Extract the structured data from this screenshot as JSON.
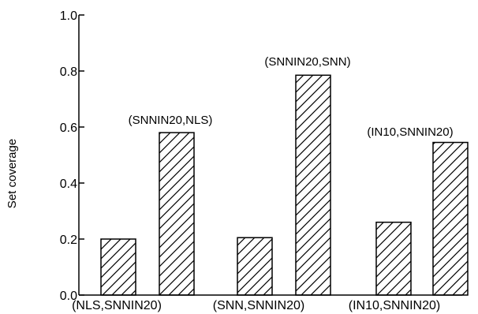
{
  "chart_data": {
    "type": "bar",
    "title": "",
    "xlabel": "",
    "ylabel": "Set coverage",
    "ylim": [
      0,
      1.0
    ],
    "yticks": [
      "0.0",
      "0.2",
      "0.4",
      "0.6",
      "0.8",
      "1.0"
    ],
    "ytick_values": [
      0,
      0.2,
      0.4,
      0.6,
      0.8,
      1.0
    ],
    "grid": false,
    "legend": "none",
    "fill_pattern": "diagonal-hatch",
    "bar_color": "#000000",
    "categories": [
      "(NLS,SNNIN20)",
      "(SNNIN20,NLS)",
      "(SNN,SNNIN20)",
      "(SNNIN20,SNN)",
      "(IN10,SNNIN20)",
      "(IN10,SNNIN20)"
    ],
    "values": [
      0.2,
      0.58,
      0.205,
      0.785,
      0.26,
      0.545
    ],
    "group_labels": [
      "(NLS,SNNIN20)",
      "(SNN,SNNIN20)",
      "(IN10,SNNIN20)"
    ],
    "bar_top_labels": [
      "",
      "(SNNIN20,NLS)",
      "",
      "(SNNIN20,SNN)",
      "",
      "(IN10,SNNIN20)"
    ]
  }
}
